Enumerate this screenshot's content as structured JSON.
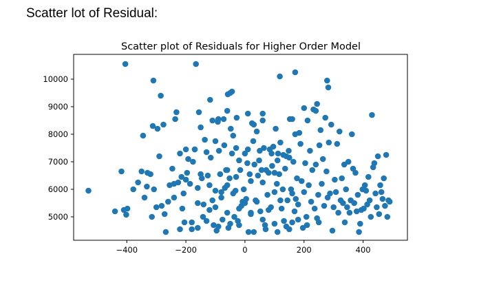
{
  "page": {
    "heading": "Scatter lot of Residual:"
  },
  "chart_data": {
    "type": "scatter",
    "title": "Scatter plot of Residuals for Higher Order Model",
    "xlabel": "",
    "ylabel": "",
    "xlim": [
      -580,
      550
    ],
    "ylim": [
      4150,
      10900
    ],
    "xticks": [
      -400,
      -200,
      0,
      200,
      400
    ],
    "xtick_labels": [
      "−400",
      "−200",
      "0",
      "200",
      "400"
    ],
    "yticks": [
      5000,
      6000,
      7000,
      8000,
      9000,
      10000
    ],
    "ytick_labels": [
      "5000",
      "6000",
      "7000",
      "8000",
      "9000",
      "10000"
    ],
    "grid": false,
    "legend": "none",
    "marker_color": "#1f77b4",
    "points": [
      [
        -530,
        5950
      ],
      [
        -440,
        5200
      ],
      [
        -410,
        5250
      ],
      [
        -402,
        5080
      ],
      [
        -398,
        5300
      ],
      [
        -418,
        6650
      ],
      [
        -405,
        10550
      ],
      [
        -378,
        6000
      ],
      [
        -362,
        6250
      ],
      [
        -350,
        6650
      ],
      [
        -345,
        7950
      ],
      [
        -340,
        5700
      ],
      [
        -332,
        6100
      ],
      [
        -330,
        6600
      ],
      [
        -320,
        6550
      ],
      [
        -315,
        5000
      ],
      [
        -312,
        8300
      ],
      [
        -310,
        9950
      ],
      [
        -308,
        6000
      ],
      [
        -296,
        8200
      ],
      [
        -290,
        7200
      ],
      [
        -285,
        9400
      ],
      [
        -282,
        5400
      ],
      [
        -276,
        8350
      ],
      [
        -272,
        5100
      ],
      [
        -268,
        4450
      ],
      [
        -255,
        6150
      ],
      [
        -246,
        6750
      ],
      [
        -240,
        5700
      ],
      [
        -236,
        8550
      ],
      [
        -232,
        8800
      ],
      [
        -226,
        6250
      ],
      [
        -220,
        7300
      ],
      [
        -215,
        6450
      ],
      [
        -212,
        5300
      ],
      [
        -208,
        5850
      ],
      [
        -205,
        4800
      ],
      [
        -200,
        7450
      ],
      [
        -196,
        6600
      ],
      [
        -192,
        7100
      ],
      [
        -186,
        6200
      ],
      [
        -180,
        4550
      ],
      [
        -176,
        7000
      ],
      [
        -170,
        7450
      ],
      [
        -166,
        10550
      ],
      [
        -160,
        5500
      ],
      [
        -156,
        8800
      ],
      [
        -150,
        6550
      ],
      [
        -146,
        6400
      ],
      [
        -142,
        5000
      ],
      [
        -136,
        7800
      ],
      [
        -130,
        4850
      ],
      [
        -126,
        6500
      ],
      [
        -120,
        5250
      ],
      [
        -116,
        7150
      ],
      [
        -110,
        5600
      ],
      [
        -106,
        4700
      ],
      [
        -100,
        5950
      ],
      [
        -96,
        4500
      ],
      [
        -92,
        8450
      ],
      [
        -88,
        7400
      ],
      [
        -84,
        6550
      ],
      [
        -80,
        5900
      ],
      [
        -76,
        4900
      ],
      [
        -72,
        8550
      ],
      [
        -68,
        6050
      ],
      [
        -64,
        6700
      ],
      [
        -60,
        6150
      ],
      [
        -56,
        4600
      ],
      [
        -52,
        6400
      ],
      [
        -48,
        8200
      ],
      [
        -44,
        7300
      ],
      [
        -40,
        7950
      ],
      [
        -36,
        5000
      ],
      [
        -32,
        5950
      ],
      [
        -28,
        8600
      ],
      [
        -24,
        4850
      ],
      [
        -20,
        4700
      ],
      [
        -16,
        6700
      ],
      [
        -12,
        5400
      ],
      [
        -8,
        5550
      ],
      [
        -4,
        6000
      ],
      [
        0,
        7300
      ],
      [
        4,
        5650
      ],
      [
        8,
        6950
      ],
      [
        12,
        4450
      ],
      [
        16,
        6550
      ],
      [
        20,
        5100
      ],
      [
        24,
        8400
      ],
      [
        28,
        7750
      ],
      [
        32,
        6900
      ],
      [
        36,
        5600
      ],
      [
        40,
        8100
      ],
      [
        44,
        6500
      ],
      [
        48,
        7050
      ],
      [
        52,
        5200
      ],
      [
        56,
        6700
      ],
      [
        60,
        8750
      ],
      [
        64,
        7500
      ],
      [
        68,
        4700
      ],
      [
        72,
        6700
      ],
      [
        76,
        5800
      ],
      [
        80,
        6600
      ],
      [
        84,
        7450
      ],
      [
        88,
        5350
      ],
      [
        92,
        6850
      ],
      [
        96,
        7550
      ],
      [
        100,
        5900
      ],
      [
        104,
        8200
      ],
      [
        108,
        6200
      ],
      [
        112,
        7300
      ],
      [
        116,
        6550
      ],
      [
        120,
        7700
      ],
      [
        124,
        5300
      ],
      [
        128,
        6000
      ],
      [
        132,
        4850
      ],
      [
        136,
        6750
      ],
      [
        140,
        7200
      ],
      [
        144,
        5600
      ],
      [
        148,
        7400
      ],
      [
        152,
        8550
      ],
      [
        156,
        6000
      ],
      [
        160,
        4800
      ],
      [
        164,
        7000
      ],
      [
        168,
        5200
      ],
      [
        172,
        5650
      ],
      [
        176,
        6400
      ],
      [
        180,
        5450
      ],
      [
        184,
        8050
      ],
      [
        188,
        7650
      ],
      [
        192,
        6300
      ],
      [
        196,
        4600
      ],
      [
        200,
        5900
      ],
      [
        204,
        6950
      ],
      [
        208,
        5000
      ],
      [
        212,
        8500
      ],
      [
        216,
        6150
      ],
      [
        220,
        7400
      ],
      [
        224,
        5550
      ],
      [
        228,
        6700
      ],
      [
        232,
        8900
      ],
      [
        236,
        5300
      ],
      [
        240,
        6900
      ],
      [
        244,
        4950
      ],
      [
        248,
        5800
      ],
      [
        252,
        7600
      ],
      [
        256,
        8150
      ],
      [
        260,
        6200
      ],
      [
        264,
        7100
      ],
      [
        268,
        5400
      ],
      [
        272,
        8600
      ],
      [
        276,
        6650
      ],
      [
        280,
        5700
      ],
      [
        284,
        7700
      ],
      [
        288,
        5850
      ],
      [
        292,
        8350
      ],
      [
        296,
        4500
      ],
      [
        300,
        5350
      ],
      [
        304,
        6350
      ],
      [
        308,
        5900
      ],
      [
        312,
        7650
      ],
      [
        316,
        5150
      ],
      [
        320,
        8100
      ],
      [
        324,
        5600
      ],
      [
        328,
        6400
      ],
      [
        332,
        5500
      ],
      [
        336,
        6900
      ],
      [
        338,
        4800
      ],
      [
        342,
        6000
      ],
      [
        346,
        5350
      ],
      [
        350,
        7000
      ],
      [
        354,
        5150
      ],
      [
        358,
        5600
      ],
      [
        362,
        8000
      ],
      [
        366,
        6750
      ],
      [
        370,
        5500
      ],
      [
        374,
        6600
      ],
      [
        378,
        5200
      ],
      [
        382,
        5800
      ],
      [
        386,
        4450
      ],
      [
        390,
        4750
      ],
      [
        394,
        5250
      ],
      [
        398,
        6000
      ],
      [
        402,
        5300
      ],
      [
        406,
        6150
      ],
      [
        410,
        5950
      ],
      [
        414,
        5450
      ],
      [
        418,
        6450
      ],
      [
        422,
        5600
      ],
      [
        426,
        5000
      ],
      [
        430,
        8700
      ],
      [
        434,
        6800
      ],
      [
        438,
        6950
      ],
      [
        442,
        5850
      ],
      [
        446,
        5350
      ],
      [
        450,
        7200
      ],
      [
        454,
        5100
      ],
      [
        458,
        6150
      ],
      [
        462,
        5900
      ],
      [
        466,
        5650
      ],
      [
        470,
        6400
      ],
      [
        474,
        5400
      ],
      [
        478,
        7250
      ],
      [
        482,
        5000
      ],
      [
        486,
        5600
      ],
      [
        490,
        5550
      ],
      [
        -118,
        9250
      ],
      [
        -58,
        9450
      ],
      [
        -50,
        9500
      ],
      [
        -44,
        9550
      ],
      [
        118,
        10100
      ],
      [
        170,
        10250
      ],
      [
        278,
        9950
      ],
      [
        282,
        9700
      ],
      [
        244,
        9100
      ],
      [
        200,
        8950
      ],
      [
        240,
        8850
      ],
      [
        160,
        8550
      ],
      [
        -90,
        8550
      ],
      [
        -110,
        8500
      ],
      [
        -60,
        8850
      ],
      [
        10,
        8750
      ],
      [
        30,
        8350
      ],
      [
        60,
        8500
      ],
      [
        170,
        8000
      ],
      [
        -150,
        8250
      ],
      [
        -100,
        7750
      ],
      [
        -70,
        7600
      ],
      [
        -30,
        7500
      ],
      [
        10,
        7450
      ],
      [
        90,
        7300
      ],
      [
        130,
        7250
      ],
      [
        -130,
        7350
      ],
      [
        -170,
        7450
      ],
      [
        -20,
        7050
      ],
      [
        50,
        7400
      ],
      [
        110,
        7050
      ],
      [
        150,
        7150
      ],
      [
        -60,
        6700
      ],
      [
        -30,
        6450
      ],
      [
        20,
        6300
      ],
      [
        60,
        6250
      ],
      [
        100,
        6600
      ],
      [
        -200,
        6350
      ],
      [
        -240,
        6200
      ],
      [
        -160,
        6050
      ],
      [
        -120,
        6150
      ],
      [
        -80,
        5700
      ],
      [
        -40,
        5850
      ],
      [
        0,
        5500
      ],
      [
        40,
        5550
      ],
      [
        80,
        5250
      ],
      [
        120,
        5600
      ],
      [
        160,
        5850
      ],
      [
        -260,
        5550
      ],
      [
        -300,
        5350
      ],
      [
        -140,
        5450
      ],
      [
        -100,
        5350
      ],
      [
        -60,
        5150
      ],
      [
        -20,
        5300
      ],
      [
        20,
        5150
      ],
      [
        60,
        4900
      ],
      [
        100,
        4750
      ],
      [
        140,
        4650
      ],
      [
        180,
        4900
      ],
      [
        -180,
        4800
      ],
      [
        -220,
        4550
      ],
      [
        -160,
        4600
      ],
      [
        -90,
        4650
      ],
      [
        -50,
        4750
      ],
      [
        30,
        4450
      ],
      [
        70,
        4550
      ],
      [
        110,
        4450
      ],
      [
        150,
        4550
      ],
      [
        210,
        4700
      ],
      [
        250,
        4800
      ]
    ]
  }
}
